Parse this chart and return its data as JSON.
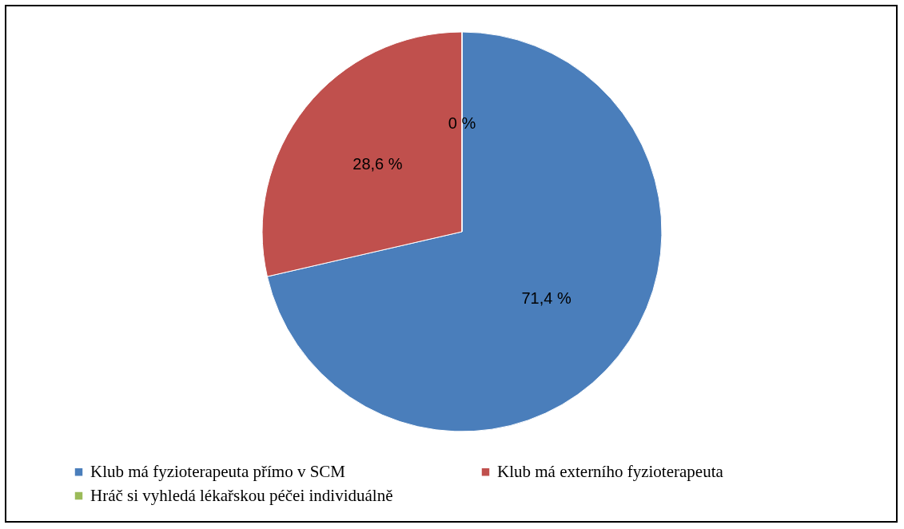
{
  "chart_data": {
    "type": "pie",
    "categories": [
      "Klub má fyzioterapeuta přímo v SCM",
      "Klub má externího fyzioterapeuta",
      "Hráč si vyhledá lékařskou péčei individuálně"
    ],
    "values": [
      71.4,
      28.6,
      0
    ],
    "colors": [
      "#4a7ebb",
      "#c0504d",
      "#9bbb59"
    ],
    "value_labels": [
      "71,4 %",
      "28,6 %",
      "0 %"
    ],
    "legend": "bottom left"
  }
}
